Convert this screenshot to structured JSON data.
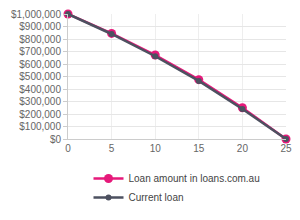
{
  "chart_data": {
    "type": "line",
    "x": [
      0,
      5,
      10,
      15,
      20,
      25
    ],
    "series": [
      {
        "name": "Loan amount in loans.com.au",
        "color": "#e6197a",
        "marker": "circle",
        "line_style": "solid",
        "values": [
          1000000,
          845000,
          672000,
          475000,
          250000,
          0
        ]
      },
      {
        "name": "Current loan",
        "color": "#4d5160",
        "marker": "circle",
        "line_style": "solid",
        "values": [
          1000000,
          840000,
          662000,
          465000,
          240000,
          0
        ]
      }
    ],
    "xlim": [
      0,
      25
    ],
    "xticks": [
      0,
      5,
      10,
      15,
      20,
      25
    ],
    "ylim": [
      0,
      1000000
    ],
    "yticks": [
      {
        "value": 0,
        "label": "$0"
      },
      {
        "value": 100000,
        "label": "$100,000"
      },
      {
        "value": 200000,
        "label": "$200,000"
      },
      {
        "value": 300000,
        "label": "$300,000"
      },
      {
        "value": 400000,
        "label": "$400,000"
      },
      {
        "value": 500000,
        "label": "$500,000"
      },
      {
        "value": 600000,
        "label": "$600,000"
      },
      {
        "value": 700000,
        "label": "$700,000"
      },
      {
        "value": 800000,
        "label": "$800,000"
      },
      {
        "value": 900000,
        "label": "$900,000"
      },
      {
        "value": 1000000,
        "label": "$1,000,000"
      }
    ],
    "grid": true,
    "legend": "bottom"
  }
}
